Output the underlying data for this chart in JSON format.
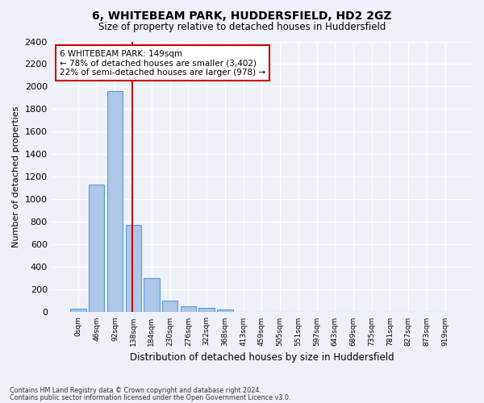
{
  "title_line1": "6, WHITEBEAM PARK, HUDDERSFIELD, HD2 2GZ",
  "title_line2": "Size of property relative to detached houses in Huddersfield",
  "xlabel": "Distribution of detached houses by size in Huddersfield",
  "ylabel": "Number of detached properties",
  "bin_labels": [
    "0sqm",
    "46sqm",
    "92sqm",
    "138sqm",
    "184sqm",
    "230sqm",
    "276sqm",
    "322sqm",
    "368sqm",
    "413sqm",
    "459sqm",
    "505sqm",
    "551sqm",
    "597sqm",
    "643sqm",
    "689sqm",
    "735sqm",
    "781sqm",
    "827sqm",
    "873sqm",
    "919sqm"
  ],
  "bar_values": [
    35,
    1130,
    1960,
    775,
    300,
    105,
    50,
    38,
    25,
    0,
    0,
    0,
    0,
    0,
    0,
    0,
    0,
    0,
    0,
    0,
    0
  ],
  "bar_color": "#aec6e8",
  "bar_edgecolor": "#5b9bd5",
  "red_line_x": 3,
  "annotation_text_line1": "6 WHITEBEAM PARK: 149sqm",
  "annotation_text_line2": "← 78% of detached houses are smaller (3,402)",
  "annotation_text_line3": "22% of semi-detached houses are larger (978) →",
  "annotation_box_color": "#ffffff",
  "annotation_box_edgecolor": "#cc0000",
  "ylim": [
    0,
    2400
  ],
  "yticks": [
    0,
    200,
    400,
    600,
    800,
    1000,
    1200,
    1400,
    1600,
    1800,
    2000,
    2200,
    2400
  ],
  "footnote1": "Contains HM Land Registry data © Crown copyright and database right 2024.",
  "footnote2": "Contains public sector information licensed under the Open Government Licence v3.0.",
  "background_color": "#eef2f8",
  "grid_color": "#ffffff"
}
